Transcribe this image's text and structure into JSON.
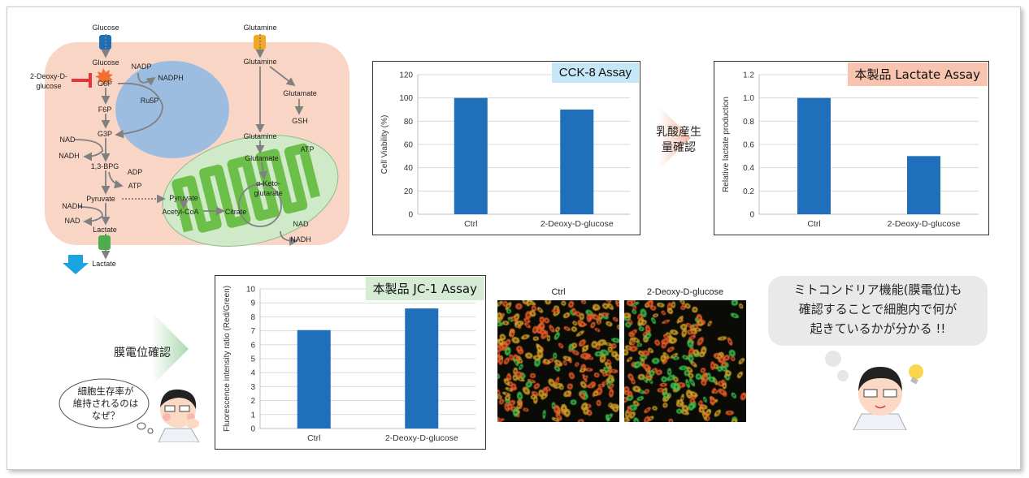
{
  "pathway": {
    "glucose_out": "Glucose",
    "glucose_in": "Glucose",
    "inhibitor_line1": "2-Deoxy-D-",
    "inhibitor_line2": "glucose",
    "g6p": "G6P",
    "nadp": "NADP",
    "nadph": "NADPH",
    "ru5p": "Ru5P",
    "f6p": "F6P",
    "g3p": "G3P",
    "nad1": "NAD",
    "nadh1": "NADH",
    "bpg": "1,3-BPG",
    "adp": "ADP",
    "atp1": "ATP",
    "pyruvate": "Pyruvate",
    "nadh2": "NADH",
    "nad2": "NAD",
    "lactate_in": "Lactate",
    "lactate_out": "Lactate",
    "glutamine_out": "Glutamine",
    "glutamine_in": "Glutamine",
    "glutamate": "Glutamate",
    "gsh": "GSH",
    "glutamine_mito": "Glutamine",
    "atp_mito": "ATP",
    "glutamate_mito": "Glutamate",
    "akg1": "α-Keto-",
    "akg2": "glutarate",
    "pyruvate_mito": "Pyruvate",
    "acetylcoa": "Acetyl-CoA",
    "citrate": "Citrate",
    "nad_mito": "NAD",
    "nadh_mito": "NADH",
    "colors": {
      "cell": "#f9d5c6",
      "nucleus": "#9dbde0",
      "mito": "#cfe9c9",
      "cristae": "#6cc04a",
      "inhibitor": "#e8323c",
      "glucose_transporter": "#1f6fb5",
      "glutamine_transporter": "#f5a623",
      "lactate_transporter": "#4cb04a",
      "export_arrow": "#1aa3e0"
    }
  },
  "arrow_lactate_text": [
    "乳酸産生",
    "量確認"
  ],
  "arrow_membrane_text": "膜電位確認",
  "left_bubble": [
    "細胞生存率が",
    "維持されるのは",
    "なぜ？"
  ],
  "right_bubble": [
    "ミトコンドリア機能(膜電位)も",
    "確認することで細胞内で何が",
    "起きているかが分かる !!"
  ],
  "micrographs": {
    "labels": [
      "Ctrl",
      "2-Deoxy-D-glucose"
    ]
  },
  "chart_data": [
    {
      "type": "bar",
      "title": "CCK-8 Assay",
      "badge_color": "#c6e7f7",
      "categories": [
        "Ctrl",
        "2-Deoxy-D-glucose"
      ],
      "values": [
        100,
        90
      ],
      "xlabel": "",
      "ylabel": "Cell Viability (%)",
      "ylim": [
        0,
        120
      ],
      "yticks": [
        "0",
        "20",
        "40",
        "60",
        "80",
        "100",
        "120"
      ],
      "grid": true,
      "bar_color": "#1f6fba"
    },
    {
      "type": "bar",
      "title": "本製品 Lactate Assay",
      "badge_color": "#f8c4b0",
      "categories": [
        "Ctrl",
        "2-Deoxy-D-glucose"
      ],
      "values": [
        1.0,
        0.5
      ],
      "xlabel": "",
      "ylabel": "Relative lactate production",
      "ylim": [
        0,
        1.2
      ],
      "yticks": [
        "0",
        "0.2",
        "0.4",
        "0.6",
        "0.8",
        "1.0",
        "1.2"
      ],
      "grid": true,
      "bar_color": "#1f6fba"
    },
    {
      "type": "bar",
      "title": "本製品 JC-1 Assay",
      "badge_color": "#d5ebd4",
      "categories": [
        "Ctrl",
        "2-Deoxy-D-glucose"
      ],
      "values": [
        7.05,
        8.6
      ],
      "xlabel": "",
      "ylabel": "Fluorescence intensity ratio (Red/Green)",
      "ylim": [
        0,
        10
      ],
      "yticks": [
        "0",
        "1",
        "2",
        "3",
        "4",
        "5",
        "6",
        "7",
        "8",
        "9",
        "10"
      ],
      "grid": true,
      "bar_color": "#1f6fba"
    }
  ]
}
